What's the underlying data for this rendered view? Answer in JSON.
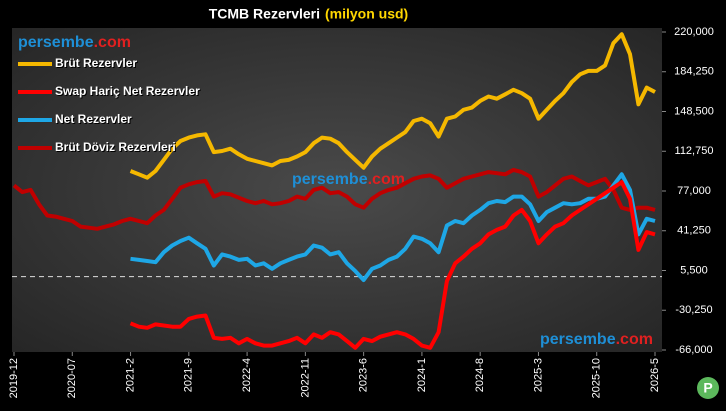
{
  "chart_data": {
    "type": "line",
    "title": "TCMB Rezervleri",
    "subtitle": "(milyon usd)",
    "watermark": [
      "persembe",
      ".com"
    ],
    "categories": [
      "2019-12",
      null,
      null,
      null,
      null,
      null,
      null,
      "2020-07",
      null,
      null,
      null,
      null,
      null,
      null,
      "2021-2",
      null,
      null,
      null,
      null,
      null,
      null,
      "2021-9",
      null,
      null,
      null,
      null,
      null,
      null,
      "2022-4",
      null,
      null,
      null,
      null,
      null,
      null,
      "2022-11",
      null,
      null,
      null,
      null,
      null,
      null,
      "2023-6",
      null,
      null,
      null,
      null,
      null,
      null,
      "2024-1",
      null,
      null,
      null,
      null,
      null,
      null,
      "2024-8",
      null,
      null,
      null,
      null,
      null,
      null,
      "2025-3",
      null,
      null,
      null,
      null,
      null,
      null,
      "2025-10",
      null,
      null,
      null,
      null,
      null,
      null,
      "2026-5"
    ],
    "series": [
      {
        "name": "Brüt Rezervler",
        "color": "#f5b800",
        "values": [
          null,
          null,
          null,
          null,
          null,
          null,
          null,
          null,
          null,
          null,
          null,
          null,
          null,
          null,
          95000,
          92000,
          89000,
          95000,
          105000,
          115000,
          122000,
          125000,
          127000,
          128000,
          112000,
          113000,
          115000,
          110000,
          106000,
          104000,
          102000,
          100000,
          104000,
          105000,
          108000,
          112000,
          120000,
          125000,
          124000,
          120000,
          112000,
          105000,
          98000,
          108000,
          115000,
          120000,
          125000,
          130000,
          140000,
          142000,
          138000,
          126000,
          142000,
          144000,
          150000,
          152000,
          158000,
          162000,
          160000,
          164000,
          168000,
          165000,
          160000,
          142000,
          150000,
          158000,
          165000,
          175000,
          182000,
          185000,
          185000,
          190000,
          210000,
          218000,
          200000,
          155000,
          170000,
          166000
        ]
      },
      {
        "name": "Swap Hariç Net Rezervler",
        "color": "#ff0000",
        "values": [
          null,
          null,
          null,
          null,
          null,
          null,
          null,
          null,
          null,
          null,
          null,
          null,
          null,
          null,
          -42000,
          -45000,
          -46000,
          -43000,
          -44000,
          -45000,
          -45000,
          -38000,
          -36000,
          -35000,
          -55000,
          -56000,
          -55000,
          -60000,
          -56000,
          -60000,
          -62000,
          -62000,
          -60000,
          -58000,
          -55000,
          -60000,
          -52000,
          -55000,
          -50000,
          -52000,
          -58000,
          -64000,
          -56000,
          -58000,
          -54000,
          -52000,
          -50000,
          -52000,
          -56000,
          -62000,
          -64000,
          -50000,
          -4000,
          12000,
          18000,
          25000,
          30000,
          38000,
          42000,
          45000,
          55000,
          60000,
          50000,
          30000,
          38000,
          45000,
          48000,
          55000,
          60000,
          65000,
          70000,
          75000,
          80000,
          85000,
          70000,
          24000,
          40000,
          38000
        ]
      },
      {
        "name": "Net Rezervler",
        "color": "#1ea7e6",
        "values": [
          null,
          null,
          null,
          null,
          null,
          null,
          null,
          null,
          null,
          null,
          null,
          null,
          null,
          null,
          16000,
          15000,
          14000,
          13000,
          22000,
          28000,
          32000,
          35000,
          30000,
          25000,
          10000,
          20000,
          18000,
          15000,
          16000,
          10000,
          12000,
          7000,
          12000,
          15000,
          18000,
          20000,
          28000,
          26000,
          20000,
          22000,
          12000,
          5000,
          -3000,
          7000,
          10000,
          15000,
          18000,
          25000,
          36000,
          34000,
          30000,
          22000,
          46000,
          50000,
          48000,
          55000,
          60000,
          66000,
          68000,
          67000,
          72000,
          72000,
          65000,
          50000,
          58000,
          62000,
          66000,
          65000,
          66000,
          70000,
          70000,
          72000,
          82000,
          92000,
          78000,
          38000,
          52000,
          50000
        ]
      },
      {
        "name": "Brüt Döviz Rezervleri",
        "color": "#c00000",
        "values": [
          82000,
          76000,
          78000,
          65000,
          55000,
          54000,
          52000,
          50000,
          45000,
          44000,
          43000,
          45000,
          47000,
          50000,
          52000,
          50000,
          48000,
          55000,
          60000,
          70000,
          80000,
          83000,
          85000,
          86000,
          72000,
          75000,
          74000,
          71000,
          68000,
          66000,
          68000,
          65000,
          66000,
          68000,
          72000,
          70000,
          78000,
          80000,
          75000,
          76000,
          72000,
          65000,
          62000,
          70000,
          75000,
          78000,
          80000,
          84000,
          88000,
          90000,
          91000,
          88000,
          80000,
          84000,
          88000,
          90000,
          92000,
          94000,
          93000,
          92000,
          96000,
          94000,
          90000,
          72000,
          76000,
          82000,
          88000,
          90000,
          86000,
          82000,
          85000,
          88000,
          78000,
          62000,
          60000,
          62000,
          62000,
          60000
        ]
      }
    ],
    "ylim": [
      -66000,
      220000
    ],
    "yticks": [
      {
        "value": -66000,
        "label": "-66,000"
      },
      {
        "value": -30250,
        "label": "-30,250"
      },
      {
        "value": 5500,
        "label": "5,500"
      },
      {
        "value": 41250,
        "label": "41,250"
      },
      {
        "value": 77000,
        "label": "77,000"
      },
      {
        "value": 112750,
        "label": "112,750"
      },
      {
        "value": 148500,
        "label": "148,500"
      },
      {
        "value": 184250,
        "label": "184,250"
      },
      {
        "value": 220000,
        "label": "220,000"
      }
    ],
    "zero_line": true,
    "legend": "upper left"
  }
}
